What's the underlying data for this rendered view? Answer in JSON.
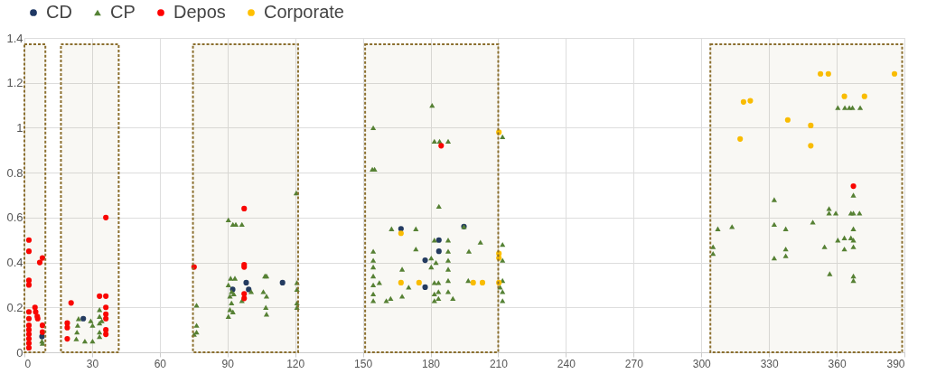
{
  "chart_data": {
    "type": "scatter",
    "xlim": [
      0,
      390
    ],
    "xticks": [
      0,
      30,
      60,
      90,
      120,
      150,
      180,
      210,
      240,
      270,
      300,
      330,
      360,
      390
    ],
    "ylim": [
      0,
      1.4
    ],
    "yticks": [
      0,
      0.2,
      0.4,
      0.6,
      0.8,
      1,
      1.2,
      1.4
    ],
    "grid": true,
    "legend": "top left",
    "series": [
      {
        "name": "CD",
        "color": "#1f3864",
        "marker": "circle",
        "x": [
          7.8,
          26.1,
          98.3,
          99.4,
          114.4,
          92.3,
          166.9,
          194.8,
          183.7,
          177.6,
          177.6,
          183.7
        ],
        "values": [
          0.07,
          0.15,
          0.31,
          0.28,
          0.31,
          0.28,
          0.55,
          0.56,
          0.45,
          0.41,
          0.29,
          0.5
        ]
      },
      {
        "name": "CP",
        "color": "#548235",
        "marker": "triangle",
        "x": [
          7.8,
          8,
          24,
          23.6,
          23.3,
          23,
          26.8,
          30.2,
          29.4,
          30.2,
          33.3,
          33.3,
          33.3,
          33.3,
          33.3,
          34.3,
          76.3,
          76.3,
          76.3,
          75.2,
          90.4,
          92.4,
          93.7,
          96.4,
          120.5,
          91.4,
          93.3,
          90.4,
          91.8,
          91.1,
          91.8,
          91.1,
          90.4,
          92.4,
          92.8,
          96.4,
          100.5,
          106.6,
          107.3,
          105.9,
          107.3,
          107,
          107.3,
          120.8,
          120.8,
          120.8,
          120.8,
          180.7,
          154.6,
          154.2,
          155.2,
          181.7,
          184,
          187.8,
          211.9,
          183.7,
          162.7,
          173.5,
          194.8,
          187.8,
          181.7,
          202.1,
          173.5,
          197,
          211.9,
          154.6,
          154.6,
          154.6,
          154.6,
          154.6,
          154.6,
          154.6,
          157.3,
          160.4,
          162.3,
          167.4,
          167.4,
          170.3,
          180.3,
          180.3,
          181.7,
          181.7,
          181.7,
          182.4,
          183.5,
          183.5,
          183.5,
          187.8,
          187.8,
          187.8,
          187.8,
          187.8,
          189.9,
          196.7,
          211.9,
          211.9,
          211.9,
          211.9,
          210.8,
          360.5,
          363.6,
          365.6,
          367,
          370.4,
          367.4,
          332.3,
          356.6,
          356.6,
          359.6,
          366.3,
          367.4,
          370.1,
          349.4,
          332.3,
          307.3,
          313.6,
          337.4,
          367.4,
          360.5,
          363.4,
          366.3,
          367.4,
          363.4,
          367.4,
          305.2,
          305.2,
          337.4,
          337.4,
          332.3,
          354.6,
          356.9,
          367.4,
          367.4
        ],
        "values": [
          0.05,
          0.04,
          0.15,
          0.12,
          0.09,
          0.06,
          0.05,
          0.05,
          0.14,
          0.12,
          0.19,
          0.16,
          0.13,
          0.09,
          0.07,
          0.14,
          0.21,
          0.12,
          0.09,
          0.08,
          0.59,
          0.57,
          0.57,
          0.57,
          0.71,
          0.33,
          0.33,
          0.3,
          0.27,
          0.25,
          0.22,
          0.19,
          0.16,
          0.18,
          0.26,
          0.23,
          0.27,
          0.34,
          0.34,
          0.27,
          0.25,
          0.2,
          0.17,
          0.31,
          0.28,
          0.22,
          0.2,
          1.1,
          1,
          0.815,
          0.815,
          0.94,
          0.94,
          0.94,
          0.96,
          0.65,
          0.55,
          0.55,
          0.56,
          0.5,
          0.5,
          0.49,
          0.46,
          0.45,
          0.48,
          0.45,
          0.41,
          0.38,
          0.34,
          0.3,
          0.26,
          0.23,
          0.31,
          0.23,
          0.24,
          0.37,
          0.25,
          0.29,
          0.42,
          0.38,
          0.31,
          0.26,
          0.23,
          0.4,
          0.31,
          0.27,
          0.24,
          0.45,
          0.41,
          0.37,
          0.32,
          0.27,
          0.24,
          0.32,
          0.41,
          0.32,
          0.27,
          0.23,
          0.29,
          1.09,
          1.09,
          1.09,
          1.09,
          1.09,
          0.7,
          0.68,
          0.64,
          0.62,
          0.62,
          0.62,
          0.62,
          0.62,
          0.58,
          0.57,
          0.55,
          0.56,
          0.55,
          0.55,
          0.5,
          0.51,
          0.51,
          0.5,
          0.46,
          0.47,
          0.47,
          0.44,
          0.46,
          0.43,
          0.42,
          0.47,
          0.35,
          0.34,
          0.32
        ]
      },
      {
        "name": "Depos",
        "color": "#ff0000",
        "marker": "circle",
        "x": [
          2,
          2,
          2,
          2,
          2,
          2,
          2,
          2,
          2,
          2,
          2,
          2,
          4.7,
          5,
          5.7,
          8,
          6.8,
          8,
          8,
          5.9,
          19,
          19,
          20.7,
          19,
          36.1,
          33.3,
          36.1,
          36.1,
          36.1,
          36.1,
          36.1,
          36.1,
          75.2,
          97.4,
          97.4,
          97.4,
          97.4,
          97.4,
          184.7,
          367.4
        ],
        "values": [
          0.5,
          0.45,
          0.32,
          0.3,
          0.18,
          0.15,
          0.12,
          0.1,
          0.08,
          0.06,
          0.04,
          0.02,
          0.2,
          0.18,
          0.16,
          0.42,
          0.4,
          0.12,
          0.09,
          0.15,
          0.13,
          0.11,
          0.22,
          0.06,
          0.6,
          0.25,
          0.25,
          0.2,
          0.17,
          0.15,
          0.1,
          0.08,
          0.38,
          0.64,
          0.39,
          0.38,
          0.26,
          0.24,
          0.92,
          0.74
        ]
      },
      {
        "name": "Corporate",
        "color": "#ffc000",
        "marker": "circle",
        "x": [
          166.9,
          166.9,
          174.9,
          198.9,
          203,
          210.3,
          210.3,
          210.3,
          210.3,
          352.8,
          356.3,
          385.6,
          318.7,
          321.7,
          363.4,
          372.3,
          338.3,
          348.5,
          317.2,
          348.5
        ],
        "values": [
          0.53,
          0.31,
          0.31,
          0.31,
          0.31,
          0.98,
          0.44,
          0.42,
          0.31,
          1.24,
          1.24,
          1.24,
          1.115,
          1.12,
          1.14,
          1.14,
          1.035,
          1.01,
          0.95,
          0.92
        ]
      }
    ],
    "bands": [
      {
        "axis": "x",
        "from": 0,
        "to": 9.3,
        "color": "#8b6f2e"
      },
      {
        "axis": "x",
        "from": 16.2,
        "to": 41.8,
        "color": "#8b6f2e"
      },
      {
        "axis": "x",
        "from": 74.7,
        "to": 121.3,
        "color": "#8b6f2e"
      },
      {
        "axis": "x",
        "from": 151,
        "to": 210,
        "color": "#8b6f2e"
      },
      {
        "axis": "x",
        "from": 304,
        "to": 389,
        "color": "#8b6f2e"
      }
    ]
  }
}
